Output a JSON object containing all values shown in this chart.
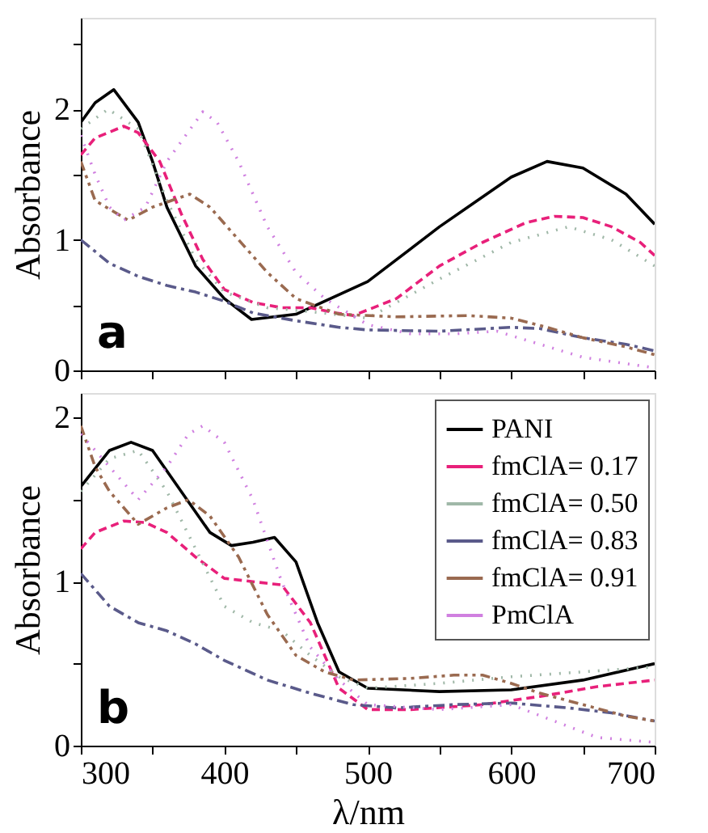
{
  "chart_data": [
    {
      "type": "line",
      "ylabel": "Absorbance",
      "annotations": [
        "a"
      ],
      "xlim": [
        300,
        700
      ],
      "xticks": [
        300,
        {
          "value": 350,
          "label": null
        },
        400,
        {
          "value": 450,
          "label": null
        },
        500,
        {
          "value": 550,
          "label": null
        },
        600,
        {
          "value": 650,
          "label": null
        },
        700
      ],
      "ylim": [
        0,
        2.7
      ],
      "yticks": [
        0,
        {
          "value": 0.5,
          "label": null
        },
        1,
        {
          "value": 1.5,
          "label": null
        },
        2,
        {
          "value": 2.5,
          "label": null
        }
      ],
      "tick_labels": "y",
      "grid": false,
      "legend": false,
      "marker": "none",
      "series": [
        {
          "color": "#000000",
          "line_style": "solid",
          "x": [
            300,
            310,
            323,
            340,
            350,
            360,
            380,
            400,
            419,
            450,
            500,
            550,
            600,
            625,
            650,
            680,
            700
          ],
          "values": [
            1.9,
            2.05,
            2.15,
            1.9,
            1.6,
            1.25,
            0.8,
            0.55,
            0.39,
            0.43,
            0.68,
            1.1,
            1.48,
            1.6,
            1.55,
            1.35,
            1.12
          ]
        },
        {
          "color": "#e8207a",
          "line_style": "dashed",
          "x": [
            300,
            310,
            330,
            340,
            355,
            370,
            385,
            400,
            420,
            440,
            460,
            478,
            490,
            520,
            550,
            580,
            610,
            630,
            650,
            670,
            690,
            700
          ],
          "values": [
            1.65,
            1.78,
            1.87,
            1.82,
            1.6,
            1.2,
            0.85,
            0.62,
            0.52,
            0.48,
            0.48,
            0.44,
            0.42,
            0.55,
            0.8,
            0.98,
            1.13,
            1.18,
            1.17,
            1.1,
            0.98,
            0.88
          ]
        },
        {
          "color": "#a0b8a8",
          "line_style": "dotted",
          "x": [
            300,
            319,
            340,
            360,
            380,
            400,
            430,
            460,
            500,
            550,
            600,
            640,
            670,
            700
          ],
          "values": [
            1.85,
            2.0,
            1.85,
            1.3,
            0.85,
            0.6,
            0.48,
            0.45,
            0.4,
            0.7,
            0.98,
            1.1,
            1.0,
            0.8
          ]
        },
        {
          "color": "#5a5a8a",
          "line_style": "dashdot",
          "x": [
            300,
            320,
            340,
            360,
            380,
            400,
            420,
            450,
            480,
            500,
            550,
            600,
            620,
            650,
            680,
            700
          ],
          "values": [
            1.0,
            0.82,
            0.72,
            0.65,
            0.6,
            0.53,
            0.44,
            0.38,
            0.33,
            0.31,
            0.3,
            0.33,
            0.32,
            0.25,
            0.2,
            0.15
          ]
        },
        {
          "color": "#9a6a50",
          "line_style": "dashdotdot",
          "x": [
            300,
            310,
            333,
            350,
            376,
            390,
            410,
            430,
            450,
            480,
            520,
            570,
            600,
            625,
            650,
            680,
            700
          ],
          "values": [
            1.6,
            1.3,
            1.15,
            1.25,
            1.35,
            1.25,
            1.0,
            0.75,
            0.55,
            0.43,
            0.41,
            0.42,
            0.4,
            0.33,
            0.25,
            0.18,
            0.12
          ]
        },
        {
          "color": "#d080e0",
          "line_style": "dotted",
          "x": [
            300,
            310,
            320,
            330,
            345,
            360,
            385,
            395,
            410,
            430,
            450,
            470,
            500,
            530,
            560,
            590,
            620,
            650,
            700
          ],
          "values": [
            1.8,
            1.5,
            1.25,
            1.15,
            1.25,
            1.6,
            1.98,
            1.9,
            1.6,
            1.1,
            0.75,
            0.55,
            0.35,
            0.28,
            0.28,
            0.3,
            0.2,
            0.1,
            0.02
          ]
        }
      ]
    },
    {
      "type": "line",
      "xlabel": "λ/nm",
      "ylabel": "Absorbance",
      "annotations": [
        "b"
      ],
      "xlim": [
        300,
        700
      ],
      "xticks": [
        300,
        {
          "value": 350,
          "label": null
        },
        400,
        {
          "value": 450,
          "label": null
        },
        500,
        {
          "value": 550,
          "label": null
        },
        600,
        {
          "value": 650,
          "label": null
        },
        700
      ],
      "ylim": [
        0,
        2.15
      ],
      "yticks": [
        0,
        {
          "value": 0.5,
          "label": null
        },
        1,
        {
          "value": 1.5,
          "label": null
        },
        2
      ],
      "grid": false,
      "legend": "top right",
      "marker": "none",
      "series": [
        {
          "name": "PANI",
          "color": "#000000",
          "line_style": "solid",
          "x": [
            300,
            320,
            335,
            350,
            370,
            390,
            405,
            420,
            435,
            450,
            465,
            480,
            500,
            550,
            600,
            650,
            700
          ],
          "values": [
            1.58,
            1.8,
            1.85,
            1.8,
            1.55,
            1.3,
            1.22,
            1.24,
            1.27,
            1.12,
            0.75,
            0.45,
            0.35,
            0.33,
            0.34,
            0.4,
            0.5
          ]
        },
        {
          "name": "fmClA= 0.17",
          "color": "#e8207a",
          "line_style": "dashed",
          "x": [
            300,
            310,
            330,
            345,
            360,
            380,
            400,
            420,
            440,
            460,
            480,
            500,
            530,
            580,
            620,
            660,
            700
          ],
          "values": [
            1.2,
            1.3,
            1.37,
            1.36,
            1.3,
            1.15,
            1.02,
            1.0,
            0.98,
            0.75,
            0.35,
            0.22,
            0.22,
            0.25,
            0.3,
            0.36,
            0.4
          ]
        },
        {
          "name": "fmClA= 0.50",
          "color": "#a0b8a8",
          "line_style": "dotted",
          "x": [
            300,
            320,
            340,
            360,
            380,
            400,
            420,
            440,
            460,
            480,
            500,
            550,
            600,
            650,
            700
          ],
          "values": [
            1.55,
            1.75,
            1.8,
            1.55,
            1.2,
            0.85,
            0.75,
            0.7,
            0.55,
            0.42,
            0.35,
            0.38,
            0.42,
            0.45,
            0.48
          ]
        },
        {
          "name": "fmClA= 0.83",
          "color": "#5a5a8a",
          "line_style": "dashdot",
          "x": [
            300,
            320,
            340,
            360,
            380,
            400,
            430,
            460,
            490,
            520,
            560,
            600,
            640,
            670,
            700
          ],
          "values": [
            1.05,
            0.85,
            0.75,
            0.7,
            0.62,
            0.52,
            0.4,
            0.32,
            0.25,
            0.23,
            0.25,
            0.26,
            0.23,
            0.2,
            0.15
          ]
        },
        {
          "name": "fmClA= 0.91",
          "color": "#9a6a50",
          "line_style": "dashdotdot",
          "x": [
            300,
            310,
            320,
            340,
            360,
            375,
            390,
            410,
            430,
            450,
            470,
            490,
            530,
            560,
            580,
            600,
            620,
            650,
            680,
            700
          ],
          "values": [
            1.95,
            1.7,
            1.55,
            1.35,
            1.45,
            1.5,
            1.4,
            1.15,
            0.8,
            0.55,
            0.45,
            0.4,
            0.41,
            0.43,
            0.43,
            0.38,
            0.32,
            0.25,
            0.18,
            0.15
          ]
        },
        {
          "name": "PmClA",
          "color": "#d080e0",
          "line_style": "dotted",
          "x": [
            300,
            320,
            340,
            360,
            375,
            385,
            400,
            420,
            440,
            460,
            480,
            500,
            550,
            600,
            630,
            660,
            700
          ],
          "values": [
            1.9,
            1.7,
            1.5,
            1.7,
            1.9,
            1.95,
            1.85,
            1.5,
            1.0,
            0.6,
            0.4,
            0.25,
            0.22,
            0.25,
            0.15,
            0.05,
            0.02
          ]
        }
      ]
    }
  ]
}
